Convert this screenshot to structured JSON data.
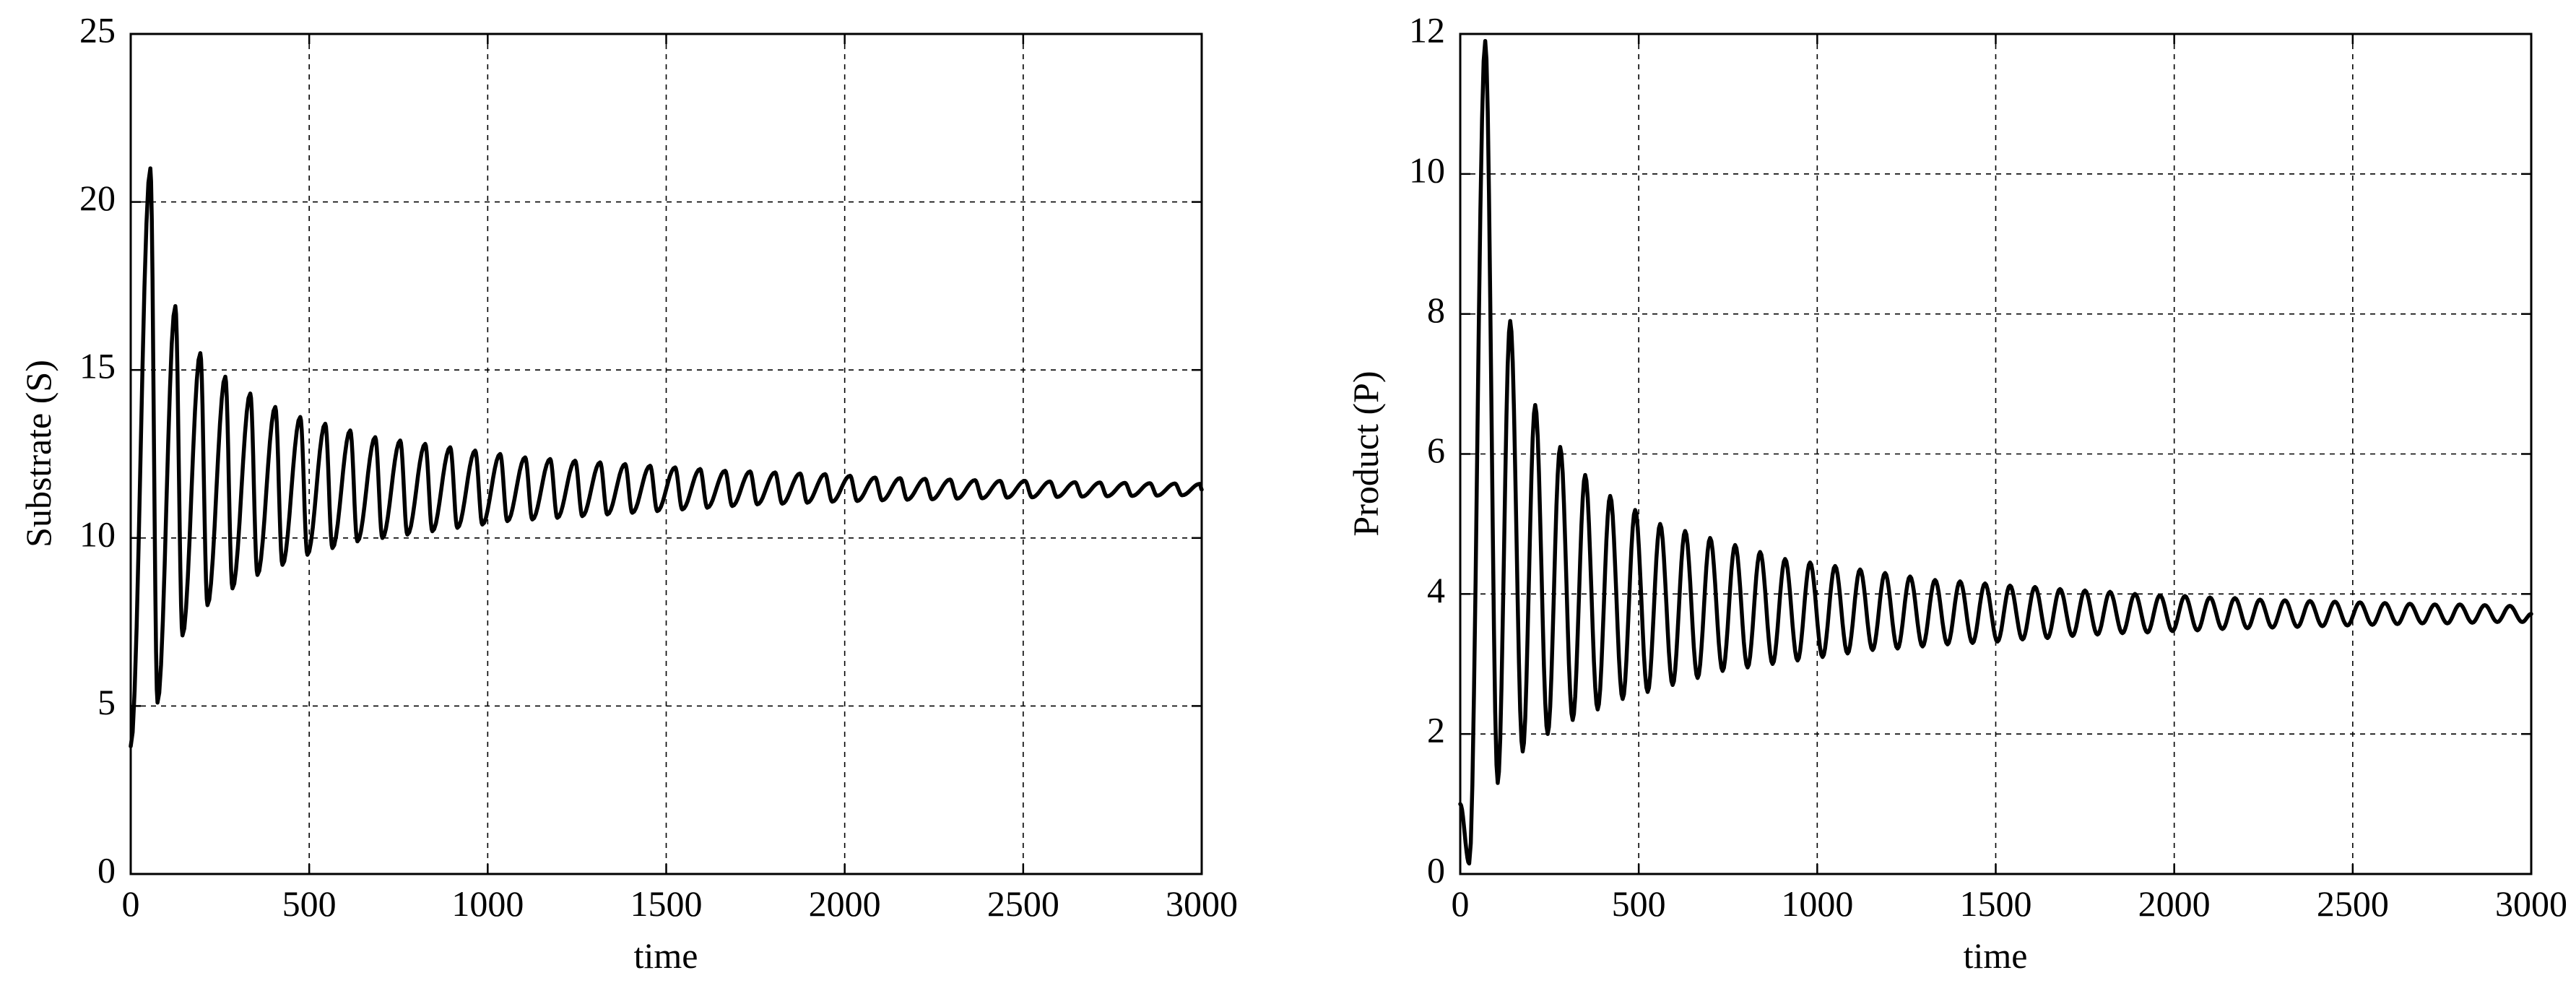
{
  "chart_data": [
    {
      "type": "line",
      "title": "",
      "xlabel": "time",
      "ylabel": "Substrate (S)",
      "xlim": [
        0,
        3000
      ],
      "ylim": [
        0,
        25
      ],
      "xticks": [
        0,
        500,
        1000,
        1500,
        2000,
        2500,
        3000
      ],
      "xtick_labels": [
        "0",
        "500",
        "1000",
        "1500",
        "2000",
        "2500",
        "3000"
      ],
      "yticks": [
        0,
        5,
        10,
        15,
        20,
        25
      ],
      "ytick_labels": [
        "0",
        "5",
        "10",
        "15",
        "20",
        "25"
      ],
      "grid": true,
      "legend": "none",
      "line_color": "#000000",
      "series": [
        {
          "oscillation": {
            "start": [
              0,
              3.8
            ],
            "equilibrium": 11.4,
            "period": 70,
            "first_peak_x": 55,
            "first_peak": 21.0,
            "first_trough_x": 75,
            "first_trough": 5.1,
            "final_amplitude": 0.25
          },
          "peaks": [
            [
              55,
              21.0
            ],
            [
              125,
              16.9
            ],
            [
              195,
              15.5
            ],
            [
              265,
              14.8
            ],
            [
              335,
              14.3
            ],
            [
              405,
              13.9
            ],
            [
              475,
              13.6
            ],
            [
              545,
              13.4
            ],
            [
              615,
              13.2
            ],
            [
              685,
              13.0
            ],
            [
              755,
              12.9
            ],
            [
              825,
              12.8
            ],
            [
              895,
              12.7
            ],
            [
              965,
              12.6
            ],
            [
              1035,
              12.5
            ],
            [
              1105,
              12.4
            ],
            [
              1175,
              12.35
            ],
            [
              1245,
              12.3
            ],
            [
              1315,
              12.25
            ],
            [
              1385,
              12.2
            ],
            [
              1455,
              12.15
            ],
            [
              1525,
              12.1
            ],
            [
              1595,
              12.05
            ],
            [
              1665,
              12.0
            ],
            [
              1735,
              11.98
            ],
            [
              1805,
              11.95
            ],
            [
              1875,
              11.92
            ],
            [
              1945,
              11.9
            ],
            [
              2015,
              11.85
            ],
            [
              2085,
              11.8
            ],
            [
              2155,
              11.78
            ],
            [
              2225,
              11.76
            ],
            [
              2295,
              11.74
            ],
            [
              2365,
              11.72
            ],
            [
              2435,
              11.7
            ],
            [
              2505,
              11.7
            ],
            [
              2575,
              11.68
            ],
            [
              2645,
              11.66
            ],
            [
              2715,
              11.65
            ],
            [
              2785,
              11.64
            ],
            [
              2855,
              11.63
            ],
            [
              2925,
              11.62
            ],
            [
              2995,
              11.61
            ]
          ],
          "troughs": [
            [
              75,
              5.1
            ],
            [
              145,
              7.1
            ],
            [
              215,
              8.0
            ],
            [
              285,
              8.5
            ],
            [
              355,
              8.9
            ],
            [
              425,
              9.2
            ],
            [
              495,
              9.5
            ],
            [
              565,
              9.7
            ],
            [
              635,
              9.9
            ],
            [
              705,
              10.0
            ],
            [
              775,
              10.1
            ],
            [
              845,
              10.2
            ],
            [
              915,
              10.3
            ],
            [
              985,
              10.4
            ],
            [
              1055,
              10.5
            ],
            [
              1125,
              10.55
            ],
            [
              1195,
              10.6
            ],
            [
              1265,
              10.65
            ],
            [
              1335,
              10.7
            ],
            [
              1405,
              10.75
            ],
            [
              1475,
              10.8
            ],
            [
              1545,
              10.85
            ],
            [
              1615,
              10.9
            ],
            [
              1685,
              10.95
            ],
            [
              1755,
              11.0
            ],
            [
              1825,
              11.02
            ],
            [
              1895,
              11.05
            ],
            [
              1965,
              11.08
            ],
            [
              2035,
              11.1
            ],
            [
              2105,
              11.12
            ],
            [
              2175,
              11.14
            ],
            [
              2245,
              11.15
            ],
            [
              2315,
              11.17
            ],
            [
              2385,
              11.18
            ],
            [
              2455,
              11.2
            ],
            [
              2525,
              11.21
            ],
            [
              2595,
              11.22
            ],
            [
              2665,
              11.23
            ],
            [
              2735,
              11.24
            ],
            [
              2805,
              11.25
            ],
            [
              2875,
              11.26
            ],
            [
              2945,
              11.27
            ]
          ]
        }
      ]
    },
    {
      "type": "line",
      "title": "",
      "xlabel": "time",
      "ylabel": "Product (P)",
      "xlim": [
        0,
        3000
      ],
      "ylim": [
        0,
        12
      ],
      "xticks": [
        0,
        500,
        1000,
        1500,
        2000,
        2500,
        3000
      ],
      "xtick_labels": [
        "0",
        "500",
        "1000",
        "1500",
        "2000",
        "2500",
        "3000"
      ],
      "yticks": [
        0,
        2,
        4,
        6,
        8,
        10,
        12
      ],
      "ytick_labels": [
        "0",
        "2",
        "4",
        "6",
        "8",
        "10",
        "12"
      ],
      "grid": true,
      "legend": "none",
      "line_color": "#000000",
      "series": [
        {
          "oscillation": {
            "start": [
              0,
              1.0
            ],
            "equilibrium": 3.7,
            "period": 70,
            "first_trough_x": 25,
            "first_trough": 0.15,
            "first_peak_x": 70,
            "first_peak": 11.9,
            "final_amplitude": 0.15
          },
          "peaks": [
            [
              70,
              11.9
            ],
            [
              140,
              7.9
            ],
            [
              210,
              6.7
            ],
            [
              280,
              6.1
            ],
            [
              350,
              5.7
            ],
            [
              420,
              5.4
            ],
            [
              490,
              5.2
            ],
            [
              560,
              5.0
            ],
            [
              630,
              4.9
            ],
            [
              700,
              4.8
            ],
            [
              770,
              4.7
            ],
            [
              840,
              4.6
            ],
            [
              910,
              4.5
            ],
            [
              980,
              4.45
            ],
            [
              1050,
              4.4
            ],
            [
              1120,
              4.35
            ],
            [
              1190,
              4.3
            ],
            [
              1260,
              4.25
            ],
            [
              1330,
              4.2
            ],
            [
              1400,
              4.18
            ],
            [
              1470,
              4.15
            ],
            [
              1540,
              4.12
            ],
            [
              1610,
              4.1
            ],
            [
              1680,
              4.07
            ],
            [
              1750,
              4.05
            ],
            [
              1820,
              4.03
            ],
            [
              1890,
              4.0
            ],
            [
              1960,
              3.98
            ],
            [
              2030,
              3.97
            ],
            [
              2100,
              3.95
            ],
            [
              2170,
              3.94
            ],
            [
              2240,
              3.92
            ],
            [
              2310,
              3.91
            ],
            [
              2380,
              3.9
            ],
            [
              2450,
              3.89
            ],
            [
              2520,
              3.88
            ],
            [
              2590,
              3.87
            ],
            [
              2660,
              3.86
            ],
            [
              2730,
              3.85
            ],
            [
              2800,
              3.85
            ],
            [
              2870,
              3.84
            ],
            [
              2940,
              3.83
            ]
          ],
          "troughs": [
            [
              25,
              0.15
            ],
            [
              105,
              1.3
            ],
            [
              175,
              1.75
            ],
            [
              245,
              2.0
            ],
            [
              315,
              2.2
            ],
            [
              385,
              2.35
            ],
            [
              455,
              2.5
            ],
            [
              525,
              2.6
            ],
            [
              595,
              2.7
            ],
            [
              665,
              2.8
            ],
            [
              735,
              2.9
            ],
            [
              805,
              2.95
            ],
            [
              875,
              3.0
            ],
            [
              945,
              3.05
            ],
            [
              1015,
              3.1
            ],
            [
              1085,
              3.15
            ],
            [
              1155,
              3.2
            ],
            [
              1225,
              3.22
            ],
            [
              1295,
              3.25
            ],
            [
              1365,
              3.28
            ],
            [
              1435,
              3.3
            ],
            [
              1505,
              3.32
            ],
            [
              1575,
              3.35
            ],
            [
              1645,
              3.37
            ],
            [
              1715,
              3.4
            ],
            [
              1785,
              3.42
            ],
            [
              1855,
              3.44
            ],
            [
              1925,
              3.45
            ],
            [
              1995,
              3.47
            ],
            [
              2065,
              3.48
            ],
            [
              2135,
              3.5
            ],
            [
              2205,
              3.51
            ],
            [
              2275,
              3.52
            ],
            [
              2345,
              3.53
            ],
            [
              2415,
              3.54
            ],
            [
              2485,
              3.55
            ],
            [
              2555,
              3.56
            ],
            [
              2625,
              3.57
            ],
            [
              2695,
              3.58
            ],
            [
              2765,
              3.58
            ],
            [
              2835,
              3.59
            ],
            [
              2905,
              3.6
            ],
            [
              2975,
              3.6
            ]
          ]
        }
      ]
    }
  ]
}
